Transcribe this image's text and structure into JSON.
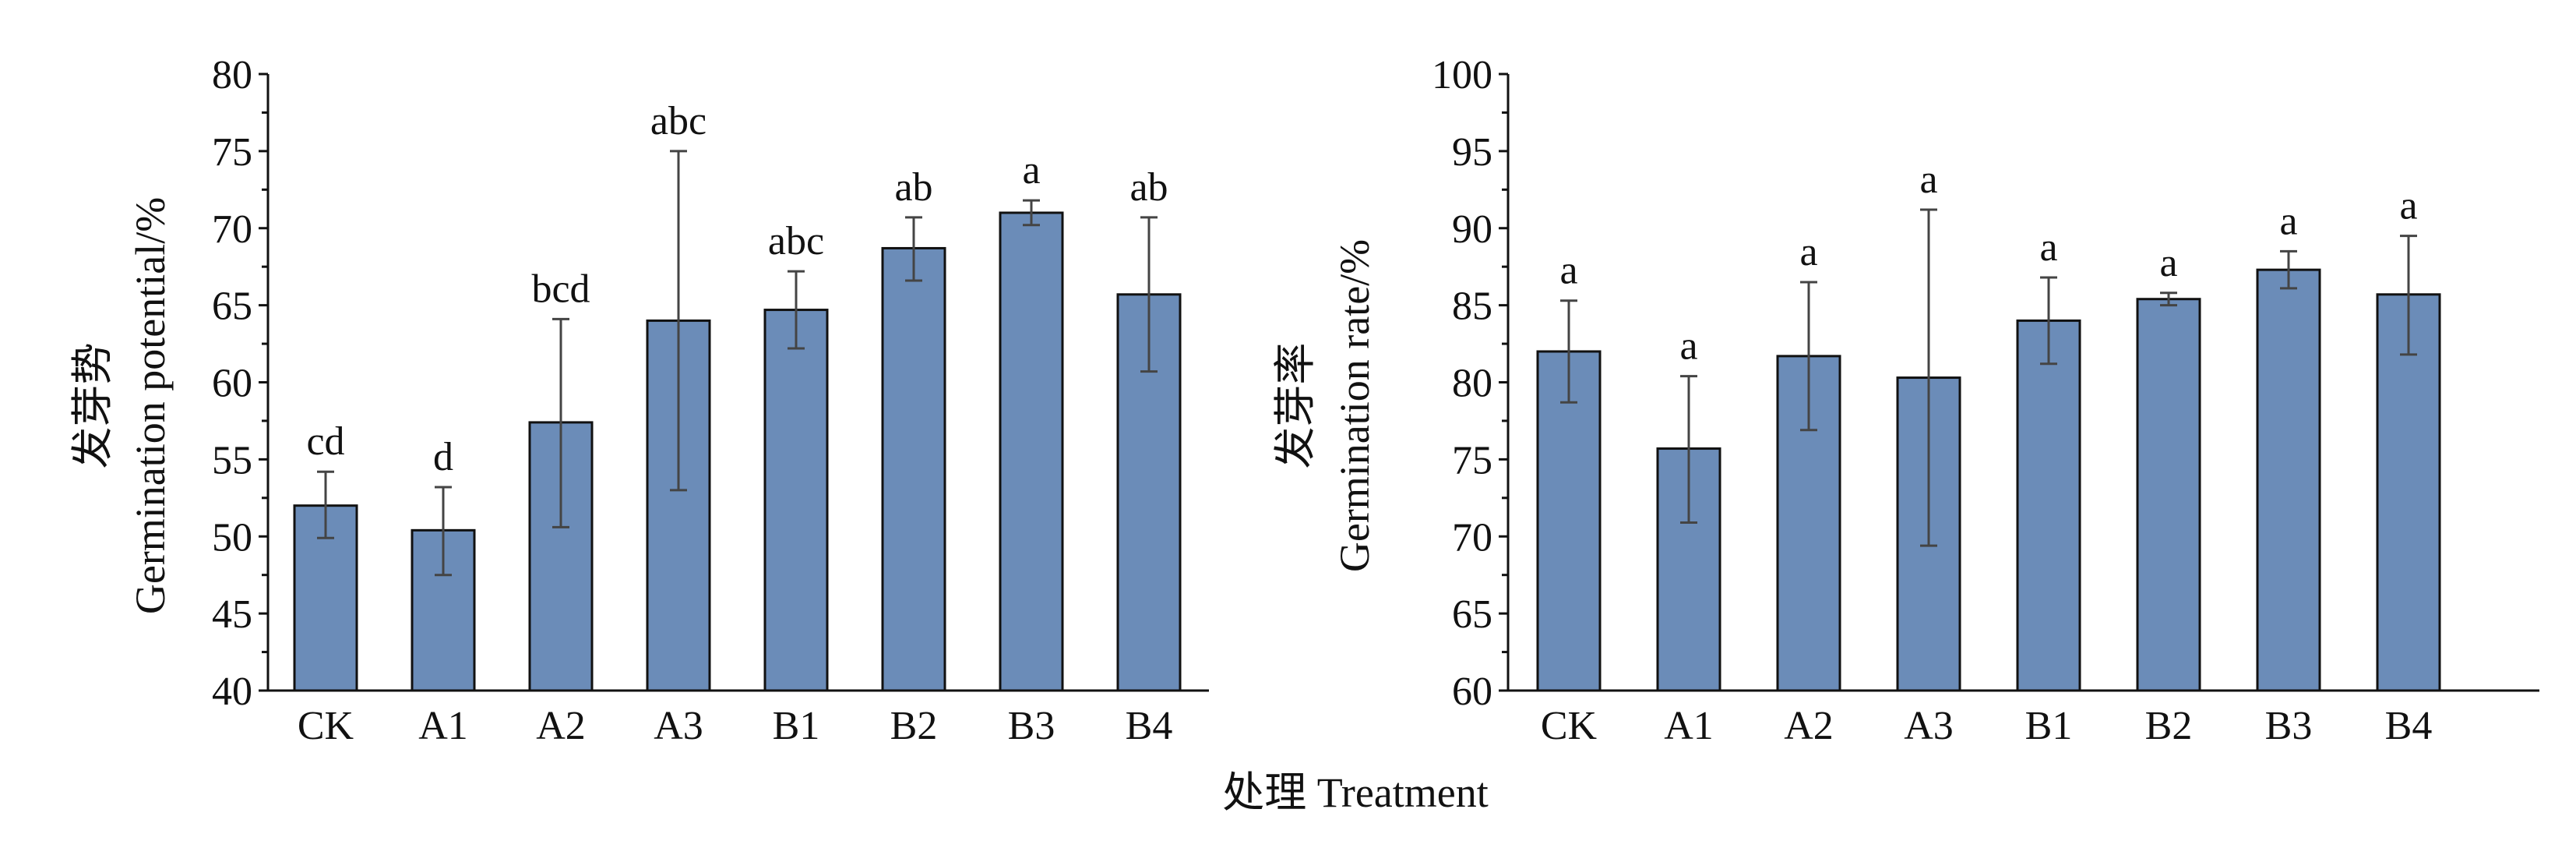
{
  "x_label_shared": "处理  Treatment",
  "chart_data": [
    {
      "type": "bar",
      "title": "",
      "ylabel_cn": "发芽势",
      "ylabel": "Germination potential/%",
      "xlabel": "处理  Treatment",
      "categories": [
        "CK",
        "A1",
        "A2",
        "A3",
        "B1",
        "B2",
        "B3",
        "B4"
      ],
      "values": [
        52.0,
        50.4,
        57.4,
        64.0,
        64.7,
        68.7,
        71.0,
        65.7
      ],
      "error_low": [
        49.9,
        47.5,
        50.6,
        53.0,
        62.2,
        66.6,
        70.2,
        60.7
      ],
      "error_high": [
        54.2,
        53.2,
        64.1,
        75.0,
        67.2,
        70.7,
        71.8,
        70.7
      ],
      "letters": [
        "cd",
        "d",
        "bcd",
        "abc",
        "abc",
        "ab",
        "a",
        "ab"
      ],
      "ylim": [
        40,
        80
      ],
      "yticks": [
        40,
        45,
        50,
        55,
        60,
        65,
        70,
        75,
        80
      ],
      "grid": false,
      "bar_color": "#6b8cb8"
    },
    {
      "type": "bar",
      "title": "",
      "ylabel_cn": "发芽率",
      "ylabel": "Germination rate/%",
      "xlabel": "处理  Treatment",
      "categories": [
        "CK",
        "A1",
        "A2",
        "A3",
        "B1",
        "B2",
        "B3",
        "B4"
      ],
      "values": [
        82.0,
        75.7,
        81.7,
        80.3,
        84.0,
        85.4,
        87.3,
        85.7
      ],
      "error_low": [
        78.7,
        70.9,
        76.9,
        69.4,
        81.2,
        85.0,
        86.1,
        81.8
      ],
      "error_high": [
        85.3,
        80.4,
        86.5,
        91.2,
        86.8,
        85.8,
        88.5,
        89.5
      ],
      "letters": [
        "a",
        "a",
        "a",
        "a",
        "a",
        "a",
        "a",
        "a"
      ],
      "ylim": [
        60,
        100
      ],
      "yticks": [
        60,
        65,
        70,
        75,
        80,
        85,
        90,
        95,
        100
      ],
      "grid": false,
      "bar_color": "#6b8cb8"
    }
  ]
}
